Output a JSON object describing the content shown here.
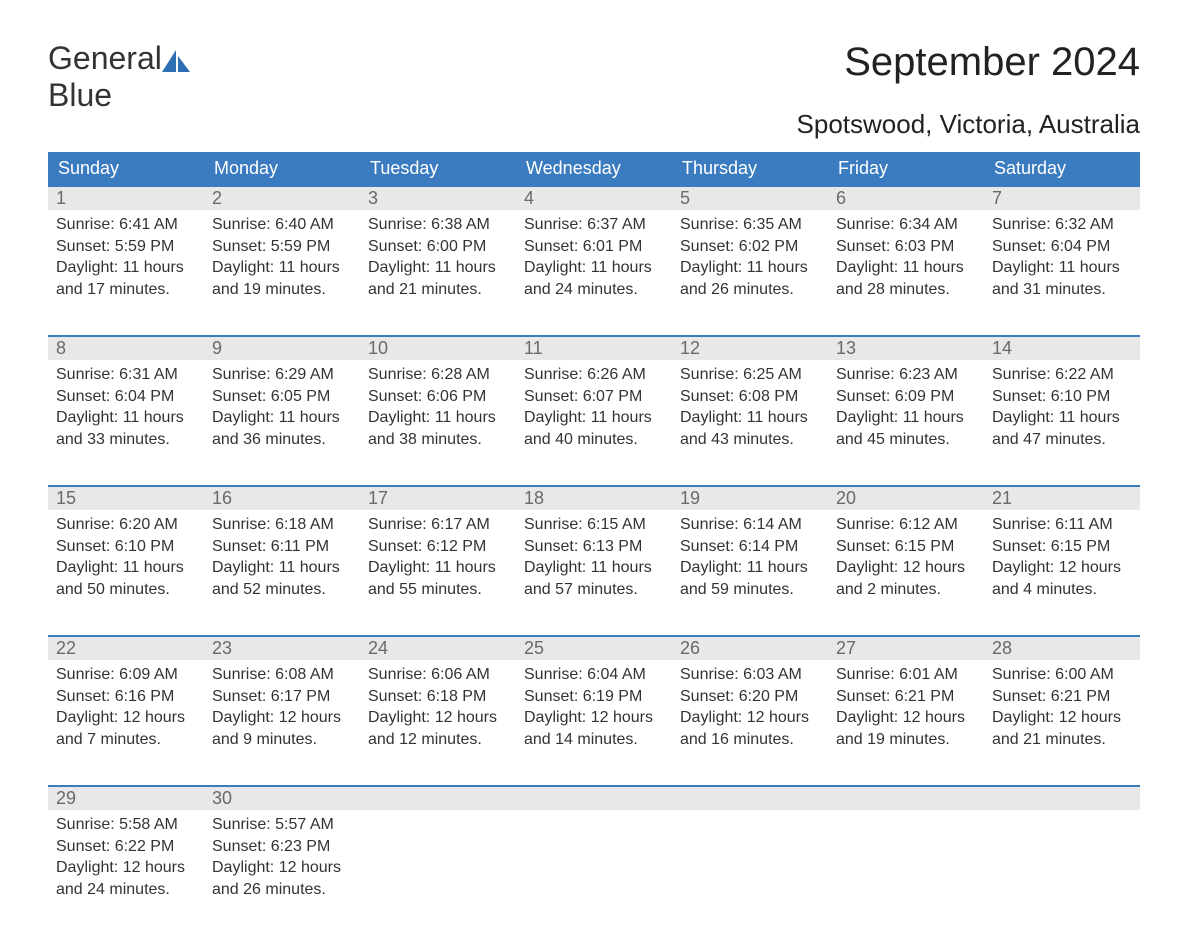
{
  "brand": {
    "part1": "General",
    "part2": "Blue",
    "sail_color": "#2c6fb5"
  },
  "title": "September 2024",
  "location": "Spotswood, Victoria, Australia",
  "colors": {
    "header_bg": "#3b7bbf",
    "header_text": "#ffffff",
    "daynum_bg": "#e8e8e8",
    "daynum_text": "#6a6a6a",
    "body_text": "#333333",
    "rule": "#3b7bbf"
  },
  "weekdays": [
    "Sunday",
    "Monday",
    "Tuesday",
    "Wednesday",
    "Thursday",
    "Friday",
    "Saturday"
  ],
  "weeks": [
    [
      {
        "n": "1",
        "sunrise": "Sunrise: 6:41 AM",
        "sunset": "Sunset: 5:59 PM",
        "day1": "Daylight: 11 hours",
        "day2": "and 17 minutes."
      },
      {
        "n": "2",
        "sunrise": "Sunrise: 6:40 AM",
        "sunset": "Sunset: 5:59 PM",
        "day1": "Daylight: 11 hours",
        "day2": "and 19 minutes."
      },
      {
        "n": "3",
        "sunrise": "Sunrise: 6:38 AM",
        "sunset": "Sunset: 6:00 PM",
        "day1": "Daylight: 11 hours",
        "day2": "and 21 minutes."
      },
      {
        "n": "4",
        "sunrise": "Sunrise: 6:37 AM",
        "sunset": "Sunset: 6:01 PM",
        "day1": "Daylight: 11 hours",
        "day2": "and 24 minutes."
      },
      {
        "n": "5",
        "sunrise": "Sunrise: 6:35 AM",
        "sunset": "Sunset: 6:02 PM",
        "day1": "Daylight: 11 hours",
        "day2": "and 26 minutes."
      },
      {
        "n": "6",
        "sunrise": "Sunrise: 6:34 AM",
        "sunset": "Sunset: 6:03 PM",
        "day1": "Daylight: 11 hours",
        "day2": "and 28 minutes."
      },
      {
        "n": "7",
        "sunrise": "Sunrise: 6:32 AM",
        "sunset": "Sunset: 6:04 PM",
        "day1": "Daylight: 11 hours",
        "day2": "and 31 minutes."
      }
    ],
    [
      {
        "n": "8",
        "sunrise": "Sunrise: 6:31 AM",
        "sunset": "Sunset: 6:04 PM",
        "day1": "Daylight: 11 hours",
        "day2": "and 33 minutes."
      },
      {
        "n": "9",
        "sunrise": "Sunrise: 6:29 AM",
        "sunset": "Sunset: 6:05 PM",
        "day1": "Daylight: 11 hours",
        "day2": "and 36 minutes."
      },
      {
        "n": "10",
        "sunrise": "Sunrise: 6:28 AM",
        "sunset": "Sunset: 6:06 PM",
        "day1": "Daylight: 11 hours",
        "day2": "and 38 minutes."
      },
      {
        "n": "11",
        "sunrise": "Sunrise: 6:26 AM",
        "sunset": "Sunset: 6:07 PM",
        "day1": "Daylight: 11 hours",
        "day2": "and 40 minutes."
      },
      {
        "n": "12",
        "sunrise": "Sunrise: 6:25 AM",
        "sunset": "Sunset: 6:08 PM",
        "day1": "Daylight: 11 hours",
        "day2": "and 43 minutes."
      },
      {
        "n": "13",
        "sunrise": "Sunrise: 6:23 AM",
        "sunset": "Sunset: 6:09 PM",
        "day1": "Daylight: 11 hours",
        "day2": "and 45 minutes."
      },
      {
        "n": "14",
        "sunrise": "Sunrise: 6:22 AM",
        "sunset": "Sunset: 6:10 PM",
        "day1": "Daylight: 11 hours",
        "day2": "and 47 minutes."
      }
    ],
    [
      {
        "n": "15",
        "sunrise": "Sunrise: 6:20 AM",
        "sunset": "Sunset: 6:10 PM",
        "day1": "Daylight: 11 hours",
        "day2": "and 50 minutes."
      },
      {
        "n": "16",
        "sunrise": "Sunrise: 6:18 AM",
        "sunset": "Sunset: 6:11 PM",
        "day1": "Daylight: 11 hours",
        "day2": "and 52 minutes."
      },
      {
        "n": "17",
        "sunrise": "Sunrise: 6:17 AM",
        "sunset": "Sunset: 6:12 PM",
        "day1": "Daylight: 11 hours",
        "day2": "and 55 minutes."
      },
      {
        "n": "18",
        "sunrise": "Sunrise: 6:15 AM",
        "sunset": "Sunset: 6:13 PM",
        "day1": "Daylight: 11 hours",
        "day2": "and 57 minutes."
      },
      {
        "n": "19",
        "sunrise": "Sunrise: 6:14 AM",
        "sunset": "Sunset: 6:14 PM",
        "day1": "Daylight: 11 hours",
        "day2": "and 59 minutes."
      },
      {
        "n": "20",
        "sunrise": "Sunrise: 6:12 AM",
        "sunset": "Sunset: 6:15 PM",
        "day1": "Daylight: 12 hours",
        "day2": "and 2 minutes."
      },
      {
        "n": "21",
        "sunrise": "Sunrise: 6:11 AM",
        "sunset": "Sunset: 6:15 PM",
        "day1": "Daylight: 12 hours",
        "day2": "and 4 minutes."
      }
    ],
    [
      {
        "n": "22",
        "sunrise": "Sunrise: 6:09 AM",
        "sunset": "Sunset: 6:16 PM",
        "day1": "Daylight: 12 hours",
        "day2": "and 7 minutes."
      },
      {
        "n": "23",
        "sunrise": "Sunrise: 6:08 AM",
        "sunset": "Sunset: 6:17 PM",
        "day1": "Daylight: 12 hours",
        "day2": "and 9 minutes."
      },
      {
        "n": "24",
        "sunrise": "Sunrise: 6:06 AM",
        "sunset": "Sunset: 6:18 PM",
        "day1": "Daylight: 12 hours",
        "day2": "and 12 minutes."
      },
      {
        "n": "25",
        "sunrise": "Sunrise: 6:04 AM",
        "sunset": "Sunset: 6:19 PM",
        "day1": "Daylight: 12 hours",
        "day2": "and 14 minutes."
      },
      {
        "n": "26",
        "sunrise": "Sunrise: 6:03 AM",
        "sunset": "Sunset: 6:20 PM",
        "day1": "Daylight: 12 hours",
        "day2": "and 16 minutes."
      },
      {
        "n": "27",
        "sunrise": "Sunrise: 6:01 AM",
        "sunset": "Sunset: 6:21 PM",
        "day1": "Daylight: 12 hours",
        "day2": "and 19 minutes."
      },
      {
        "n": "28",
        "sunrise": "Sunrise: 6:00 AM",
        "sunset": "Sunset: 6:21 PM",
        "day1": "Daylight: 12 hours",
        "day2": "and 21 minutes."
      }
    ],
    [
      {
        "n": "29",
        "sunrise": "Sunrise: 5:58 AM",
        "sunset": "Sunset: 6:22 PM",
        "day1": "Daylight: 12 hours",
        "day2": "and 24 minutes."
      },
      {
        "n": "30",
        "sunrise": "Sunrise: 5:57 AM",
        "sunset": "Sunset: 6:23 PM",
        "day1": "Daylight: 12 hours",
        "day2": "and 26 minutes."
      },
      {
        "empty": true
      },
      {
        "empty": true
      },
      {
        "empty": true
      },
      {
        "empty": true
      },
      {
        "empty": true
      }
    ]
  ]
}
